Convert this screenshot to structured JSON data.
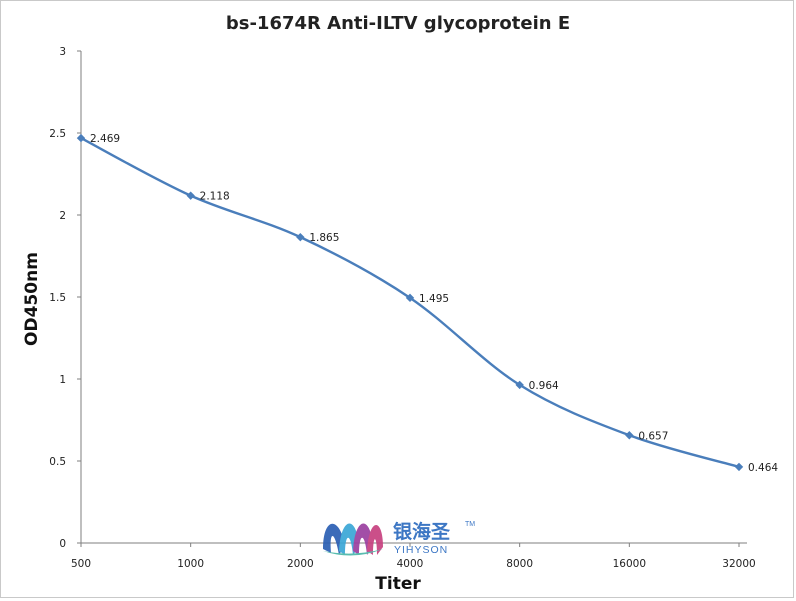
{
  "chart_data": {
    "type": "line",
    "title": "bs-1674R Anti-ILTV glycoprotein E",
    "xlabel": "Titer",
    "ylabel": "OD450nm",
    "categories": [
      "500",
      "1000",
      "2000",
      "4000",
      "8000",
      "16000",
      "32000"
    ],
    "series": [
      {
        "values": [
          2.469,
          2.118,
          1.865,
          1.495,
          0.964,
          0.657,
          0.464
        ],
        "data_labels": [
          "2.469",
          "2.118",
          "1.865",
          "1.495",
          "0.964",
          "0.657",
          "0.464"
        ],
        "color": "#4a7ebb",
        "marker": "diamond",
        "smooth": true
      }
    ],
    "ylim": [
      0,
      3
    ],
    "yticks": [
      "0",
      "0.5",
      "1",
      "1.5",
      "2",
      "2.5",
      "3"
    ],
    "grid": false,
    "legend": "none"
  },
  "watermark": {
    "brand_cn": "银海圣",
    "brand_en": "YIHYSON",
    "trademark": "TM",
    "logo_colors": [
      "#2b5fb4",
      "#3aa7d6",
      "#9b3fa0",
      "#c7417f",
      "#4bb8a9"
    ]
  }
}
